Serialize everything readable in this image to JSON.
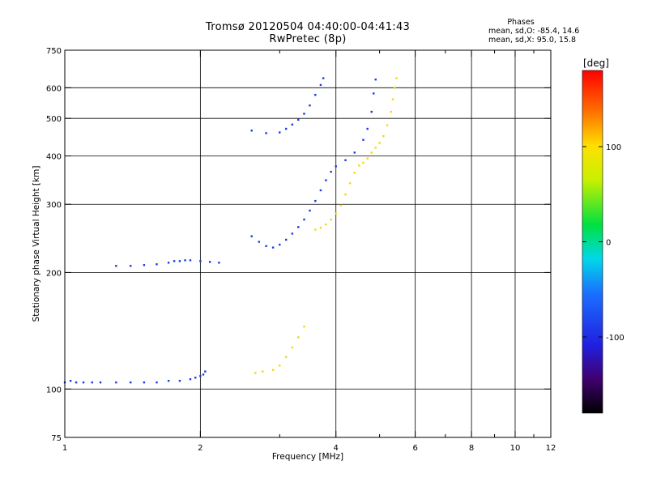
{
  "chart_data": {
    "type": "scatter",
    "title": "Tromsø 20120504 04:40:00-04:41:43",
    "subtitle": "RwPretec (8p)",
    "xlabel": "Frequency [MHz]",
    "ylabel": "Stationary phase Virtual Height [km]",
    "x_scale": "log",
    "y_scale": "log",
    "xlim": [
      1,
      12
    ],
    "ylim": [
      75,
      750
    ],
    "x_ticks": [
      1,
      2,
      4,
      6,
      8,
      10,
      12
    ],
    "x_tick_labels": [
      "1",
      "2",
      "4",
      "6",
      "8",
      "10",
      "12"
    ],
    "x_minor_ticks": [
      3,
      5,
      7,
      9,
      11
    ],
    "y_ticks": [
      75,
      100,
      200,
      300,
      400,
      500,
      600,
      750
    ],
    "y_tick_labels": [
      "75",
      "100",
      "200",
      "300",
      "400",
      "500",
      "600",
      "750"
    ],
    "grid": true,
    "phase_stats": {
      "heading": "Phases",
      "line0": "mean, sd,O: -85.4, 14.6",
      "line1": "mean, sd,X: 95.0, 15.8"
    },
    "colorbar": {
      "label": "[deg]",
      "range": [
        -180,
        180
      ],
      "ticks": [
        100,
        0,
        -100
      ],
      "tick_labels": [
        "100",
        "0",
        "-100"
      ]
    },
    "series": [
      {
        "mode": "O",
        "phase_deg": -95,
        "color": "#1a3cdc",
        "points": [
          [
            1.0,
            104
          ],
          [
            1.03,
            105
          ],
          [
            1.06,
            104
          ],
          [
            1.1,
            104
          ],
          [
            1.15,
            104
          ],
          [
            1.2,
            104
          ],
          [
            1.3,
            104
          ],
          [
            1.4,
            104
          ],
          [
            1.5,
            104
          ],
          [
            1.6,
            104
          ],
          [
            1.7,
            105
          ],
          [
            1.8,
            105
          ],
          [
            1.9,
            106
          ],
          [
            1.95,
            107
          ],
          [
            2.0,
            108
          ],
          [
            2.03,
            109
          ],
          [
            2.05,
            111
          ],
          [
            1.3,
            208
          ],
          [
            1.4,
            208
          ],
          [
            1.5,
            209
          ],
          [
            1.6,
            210
          ],
          [
            1.7,
            212
          ],
          [
            1.75,
            214
          ],
          [
            1.8,
            214
          ],
          [
            1.85,
            215
          ],
          [
            1.9,
            215
          ],
          [
            2.0,
            214
          ],
          [
            2.1,
            213
          ],
          [
            2.2,
            212
          ],
          [
            2.6,
            248
          ],
          [
            2.7,
            240
          ],
          [
            2.8,
            234
          ],
          [
            2.9,
            232
          ],
          [
            3.0,
            236
          ],
          [
            3.1,
            243
          ],
          [
            3.2,
            252
          ],
          [
            3.3,
            262
          ],
          [
            3.4,
            274
          ],
          [
            3.5,
            289
          ],
          [
            3.6,
            306
          ],
          [
            3.7,
            326
          ],
          [
            3.8,
            346
          ],
          [
            3.9,
            364
          ],
          [
            4.0,
            376
          ],
          [
            4.2,
            390
          ],
          [
            4.4,
            408
          ],
          [
            4.6,
            440
          ],
          [
            4.7,
            470
          ],
          [
            4.8,
            520
          ],
          [
            4.85,
            580
          ],
          [
            4.9,
            630
          ],
          [
            2.6,
            465
          ],
          [
            2.8,
            458
          ],
          [
            3.0,
            460
          ],
          [
            3.1,
            470
          ],
          [
            3.2,
            482
          ],
          [
            3.3,
            496
          ],
          [
            3.4,
            514
          ],
          [
            3.5,
            540
          ],
          [
            3.6,
            575
          ],
          [
            3.7,
            610
          ],
          [
            3.75,
            635
          ]
        ]
      },
      {
        "mode": "X",
        "phase_deg": 95,
        "color": "#f2d80c",
        "points": [
          [
            2.65,
            110
          ],
          [
            2.75,
            111
          ],
          [
            2.9,
            112
          ],
          [
            3.0,
            115
          ],
          [
            3.1,
            121
          ],
          [
            3.2,
            128
          ],
          [
            3.3,
            136
          ],
          [
            3.4,
            145
          ],
          [
            3.6,
            258
          ],
          [
            3.7,
            261
          ],
          [
            3.8,
            266
          ],
          [
            3.9,
            274
          ],
          [
            4.0,
            284
          ],
          [
            4.1,
            298
          ],
          [
            4.2,
            318
          ],
          [
            4.3,
            340
          ],
          [
            4.4,
            362
          ],
          [
            4.5,
            378
          ],
          [
            4.6,
            384
          ],
          [
            4.7,
            394
          ],
          [
            4.8,
            408
          ],
          [
            4.9,
            420
          ],
          [
            5.0,
            432
          ],
          [
            5.1,
            450
          ],
          [
            5.2,
            480
          ],
          [
            5.3,
            520
          ],
          [
            5.35,
            560
          ],
          [
            5.4,
            600
          ],
          [
            5.45,
            635
          ]
        ]
      }
    ]
  }
}
